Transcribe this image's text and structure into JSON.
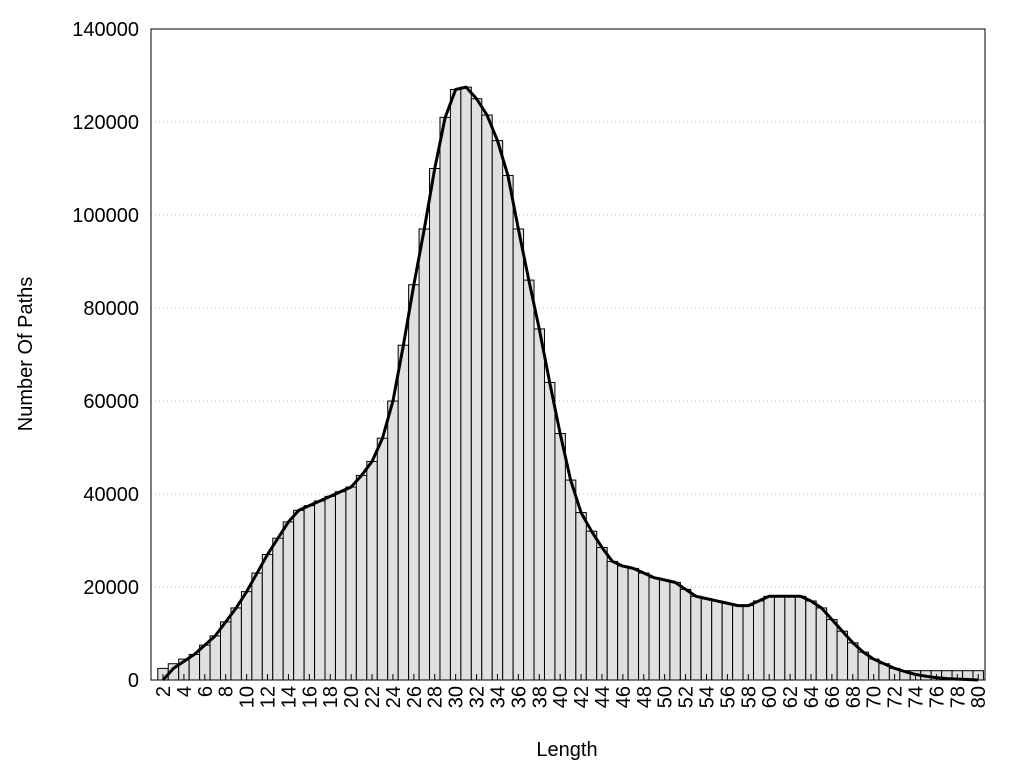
{
  "chart_data": {
    "type": "bar",
    "xlabel": "Length",
    "ylabel": "Number Of Paths",
    "x": [
      2,
      3,
      4,
      5,
      6,
      7,
      8,
      9,
      10,
      11,
      12,
      13,
      14,
      15,
      16,
      17,
      18,
      19,
      20,
      21,
      22,
      23,
      24,
      25,
      26,
      27,
      28,
      29,
      30,
      31,
      32,
      33,
      34,
      35,
      36,
      37,
      38,
      39,
      40,
      41,
      42,
      43,
      44,
      45,
      46,
      47,
      48,
      49,
      50,
      51,
      52,
      53,
      54,
      55,
      56,
      57,
      58,
      59,
      60,
      61,
      62,
      63,
      64,
      65,
      66,
      67,
      68,
      69,
      70,
      71,
      72,
      73,
      74,
      75,
      76,
      77,
      78,
      79,
      80
    ],
    "series": [
      {
        "type": "bar",
        "color": "#e0e0e0",
        "values": [
          2500,
          3500,
          4500,
          5500,
          7500,
          9500,
          12500,
          15500,
          19000,
          23000,
          27000,
          30500,
          34000,
          36500,
          37500,
          38500,
          39500,
          40500,
          41500,
          44000,
          47000,
          52000,
          60000,
          72000,
          85000,
          97000,
          110000,
          121000,
          127000,
          127500,
          125000,
          121500,
          116000,
          108500,
          97000,
          86000,
          75500,
          64000,
          53000,
          43000,
          36000,
          32000,
          28500,
          25500,
          24500,
          24000,
          23000,
          22000,
          21500,
          21000,
          19500,
          18000,
          17500,
          17000,
          16500,
          16000,
          16000,
          17000,
          18000,
          18000,
          18000,
          18000,
          17000,
          15500,
          13000,
          10500,
          8000,
          6000,
          4500,
          3500,
          2500,
          2000,
          2000,
          2000,
          2000,
          2000,
          2000,
          2000,
          2000
        ]
      },
      {
        "type": "line",
        "color": "#000000",
        "values": [
          0,
          2500,
          4000,
          5500,
          7500,
          9500,
          12500,
          15500,
          19000,
          23000,
          27000,
          30500,
          34000,
          36500,
          37500,
          38500,
          39500,
          40500,
          41500,
          44000,
          47000,
          52000,
          60000,
          72000,
          85000,
          97000,
          110000,
          121000,
          127000,
          127500,
          125000,
          121500,
          116000,
          108500,
          97000,
          86000,
          75500,
          64000,
          53000,
          43000,
          36000,
          32000,
          28500,
          25500,
          24500,
          24000,
          23000,
          22000,
          21500,
          21000,
          19500,
          18000,
          17500,
          17000,
          16500,
          16000,
          16000,
          17000,
          18000,
          18000,
          18000,
          18000,
          17000,
          15500,
          13000,
          10500,
          8000,
          6000,
          4500,
          3500,
          2500,
          1800,
          1200,
          800,
          500,
          300,
          200,
          100,
          0
        ]
      }
    ],
    "xlim": [
      0.85,
      80.65
    ],
    "xticks": [
      2,
      4,
      6,
      8,
      10,
      12,
      14,
      16,
      18,
      20,
      22,
      24,
      26,
      28,
      30,
      32,
      34,
      36,
      38,
      40,
      42,
      44,
      46,
      48,
      50,
      52,
      54,
      56,
      58,
      60,
      62,
      64,
      66,
      68,
      70,
      72,
      74,
      76,
      78,
      80
    ],
    "ylim": [
      0,
      140000
    ],
    "yticks": [
      0,
      20000,
      40000,
      60000,
      80000,
      100000,
      120000,
      140000
    ],
    "grid": true
  }
}
